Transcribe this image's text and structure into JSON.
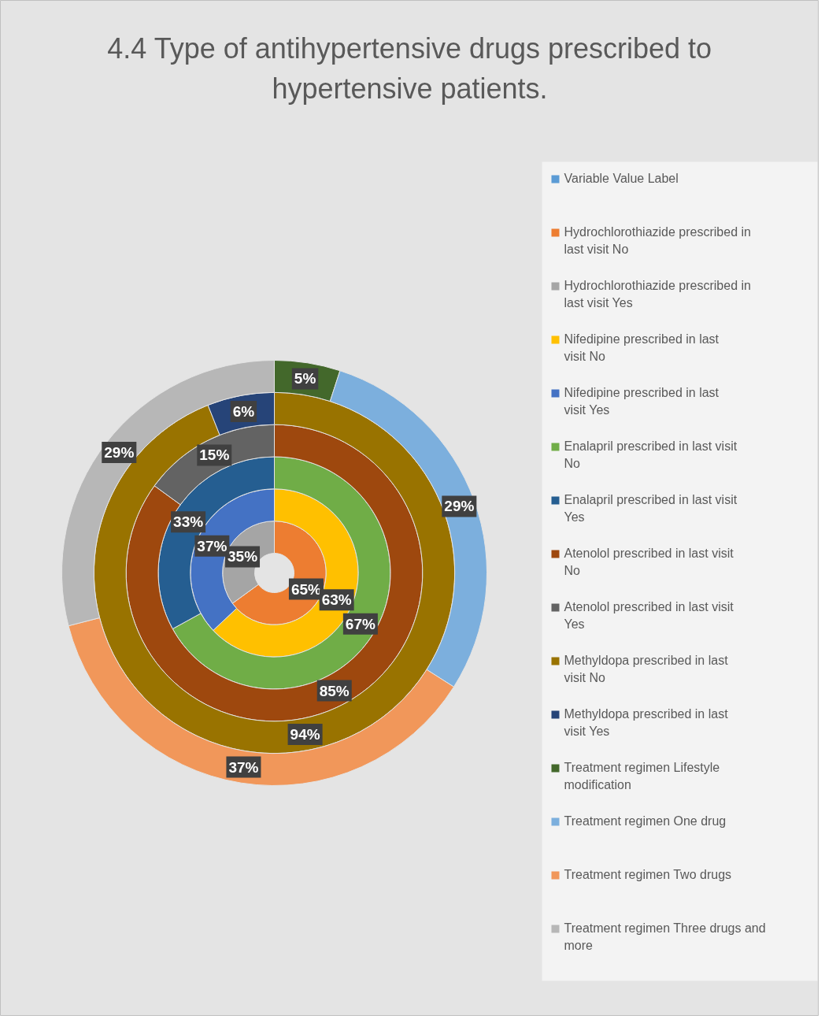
{
  "chart_data": {
    "type": "donut",
    "title": "4.4 Type of antihypertensive drugs prescribed to hypertensive patients.",
    "categories": [
      "Variable Value Label",
      "Hydrochlorothiazide prescribed in last visit No",
      "Hydrochlorothiazide prescribed in last visit Yes",
      "Nifedipine prescribed in last visit No",
      "Nifedipine prescribed in last visit Yes",
      "Enalapril prescribed in last visit No",
      "Enalapril prescribed in last visit Yes",
      "Atenolol prescribed in last visit No",
      "Atenolol prescribed in last visit Yes",
      "Methyldopa prescribed in last visit No",
      "Methyldopa prescribed in last visit Yes",
      "Treatment regimen Lifestyle modification",
      "Treatment regimen One drug",
      "Treatment regimen Two drugs",
      "Treatment regimen Three drugs and more"
    ],
    "colors": [
      "#5b9bd5",
      "#ed7d31",
      "#a5a5a5",
      "#ffc000",
      "#4472c4",
      "#70ad47",
      "#255e91",
      "#9e480e",
      "#636363",
      "#997300",
      "#264478",
      "#43682b",
      "#7cafdd",
      "#f1975a",
      "#b7b7b7"
    ],
    "series": [
      {
        "values": [
          null,
          65,
          35,
          null,
          null,
          null,
          null,
          null,
          null,
          null,
          null,
          null,
          null,
          null,
          null
        ],
        "value_labels": [
          null,
          "65%",
          "35%",
          null,
          null,
          null,
          null,
          null,
          null,
          null,
          null,
          null,
          null,
          null,
          null
        ]
      },
      {
        "values": [
          null,
          null,
          null,
          63,
          37,
          null,
          null,
          null,
          null,
          null,
          null,
          null,
          null,
          null,
          null
        ],
        "value_labels": [
          null,
          null,
          null,
          "63%",
          "37%",
          null,
          null,
          null,
          null,
          null,
          null,
          null,
          null,
          null,
          null
        ]
      },
      {
        "values": [
          null,
          null,
          null,
          null,
          null,
          67,
          33,
          null,
          null,
          null,
          null,
          null,
          null,
          null,
          null
        ],
        "value_labels": [
          null,
          null,
          null,
          null,
          null,
          "67%",
          "33%",
          null,
          null,
          null,
          null,
          null,
          null,
          null,
          null
        ]
      },
      {
        "values": [
          null,
          null,
          null,
          null,
          null,
          null,
          null,
          85,
          15,
          null,
          null,
          null,
          null,
          null,
          null
        ],
        "value_labels": [
          null,
          null,
          null,
          null,
          null,
          null,
          null,
          "85%",
          "15%",
          null,
          null,
          null,
          null,
          null,
          null
        ]
      },
      {
        "values": [
          null,
          null,
          null,
          null,
          null,
          null,
          null,
          null,
          null,
          94,
          6,
          null,
          null,
          null,
          null
        ],
        "value_labels": [
          null,
          null,
          null,
          null,
          null,
          null,
          null,
          null,
          null,
          "94%",
          "6%",
          null,
          null,
          null,
          null
        ]
      },
      {
        "values": [
          null,
          null,
          null,
          null,
          null,
          null,
          null,
          null,
          null,
          null,
          null,
          5,
          29,
          37,
          29
        ],
        "value_labels": [
          null,
          null,
          null,
          null,
          null,
          null,
          null,
          null,
          null,
          null,
          null,
          "5%",
          "29%",
          "37%",
          "29%"
        ]
      }
    ],
    "legend": "right"
  }
}
